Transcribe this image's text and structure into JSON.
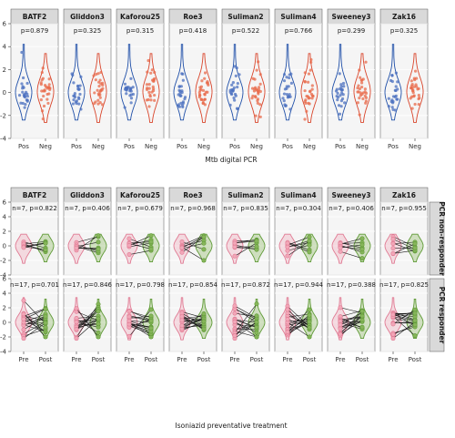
{
  "colors": {
    "pos_fill": "#4a6fbf",
    "pos_line": "#1f4fa8",
    "neg_fill": "#e8694a",
    "neg_line": "#d9452b",
    "pre_fill": "#f2a7b8",
    "pre_line": "#e07a93",
    "post_fill": "#86b55a",
    "post_line": "#5f9a36",
    "pair_line": "#1a1a1a",
    "panel_bg": "#f5f5f5",
    "strip_bg": "#d9d9d9",
    "grid": "#ffffff"
  },
  "chart_data": [
    {
      "type": "violin",
      "xlabel": "Mtb digital PCR",
      "ylim": [
        -4,
        6
      ],
      "yticks": [
        -4,
        -2,
        0,
        2,
        4,
        6
      ],
      "categories": [
        "Pos",
        "Neg"
      ],
      "panels": [
        {
          "name": "BATF2",
          "label": "p=0.879"
        },
        {
          "name": "Gliddon3",
          "label": "p=0.325"
        },
        {
          "name": "Kaforou25",
          "label": "p=0.315"
        },
        {
          "name": "Roe3",
          "label": "p=0.418"
        },
        {
          "name": "Suliman2",
          "label": "p=0.522"
        },
        {
          "name": "Suliman4",
          "label": "p=0.766"
        },
        {
          "name": "Sweeney3",
          "label": "p=0.299"
        },
        {
          "name": "Zak16",
          "label": "p=0.325"
        }
      ]
    },
    {
      "type": "paired-violin",
      "xlabel": "Isoniazid preventative treatment",
      "categories": [
        "Pre",
        "Post"
      ],
      "rows": [
        {
          "name": "PCR non-responder",
          "ylim": [
            -4,
            6
          ],
          "yticks": [
            -4,
            -2,
            0,
            2,
            4,
            6
          ]
        },
        {
          "name": "PCR responder",
          "ylim": [
            -4,
            6
          ],
          "yticks": [
            -4,
            -2,
            0,
            2,
            4,
            6
          ]
        }
      ],
      "panels": [
        {
          "name": "BATF2",
          "labels": [
            "n=7, p=0.822",
            "n=17, p=0.701"
          ]
        },
        {
          "name": "Gliddon3",
          "labels": [
            "n=7, p=0.406",
            "n=17, p=0.846"
          ]
        },
        {
          "name": "Kaforou25",
          "labels": [
            "n=7, p=0.679",
            "n=17, p=0.798"
          ]
        },
        {
          "name": "Roe3",
          "labels": [
            "n=7, p=0.968",
            "n=17, p=0.854"
          ]
        },
        {
          "name": "Suliman2",
          "labels": [
            "n=7, p=0.835",
            "n=17, p=0.872"
          ]
        },
        {
          "name": "Suliman4",
          "labels": [
            "n=7, p=0.304",
            "n=17, p=0.944"
          ]
        },
        {
          "name": "Sweeney3",
          "labels": [
            "n=7, p=0.406",
            "n=17, p=0.388"
          ]
        },
        {
          "name": "Zak16",
          "labels": [
            "n=7, p=0.955",
            "n=17, p=0.825"
          ]
        }
      ]
    }
  ]
}
